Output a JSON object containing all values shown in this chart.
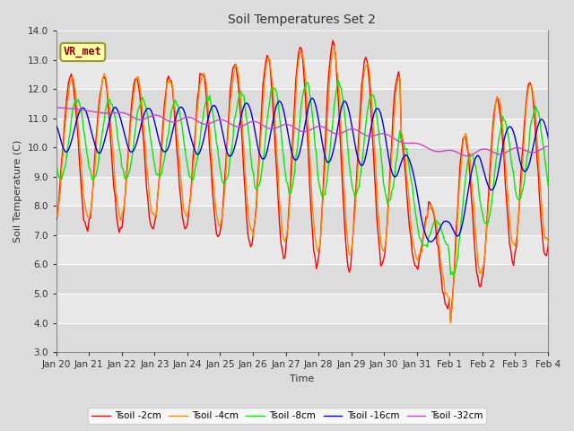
{
  "title": "Soil Temperatures Set 2",
  "xlabel": "Time",
  "ylabel": "Soil Temperature (C)",
  "ylim": [
    3.0,
    14.0
  ],
  "yticks": [
    3.0,
    4.0,
    5.0,
    6.0,
    7.0,
    8.0,
    9.0,
    10.0,
    11.0,
    12.0,
    13.0,
    14.0
  ],
  "date_labels": [
    "Jan 20",
    "Jan 21",
    "Jan 22",
    "Jan 23",
    "Jan 24",
    "Jan 25",
    "Jan 26",
    "Jan 27",
    "Jan 28",
    "Jan 29",
    "Jan 30",
    "Jan 31",
    "Feb 1",
    "Feb 2",
    "Feb 3",
    "Feb 4"
  ],
  "colors": {
    "Tsoil -2cm": "#FF0000",
    "Tsoil -4cm": "#FF8C00",
    "Tsoil -8cm": "#00EE00",
    "Tsoil -16cm": "#0000DD",
    "Tsoil -32cm": "#CC44CC"
  },
  "annotation_text": "VR_met",
  "bg_color": "#DCDCDC",
  "plot_bg_color": "#E8E8E8",
  "stripe_color": "#D0D0D0"
}
